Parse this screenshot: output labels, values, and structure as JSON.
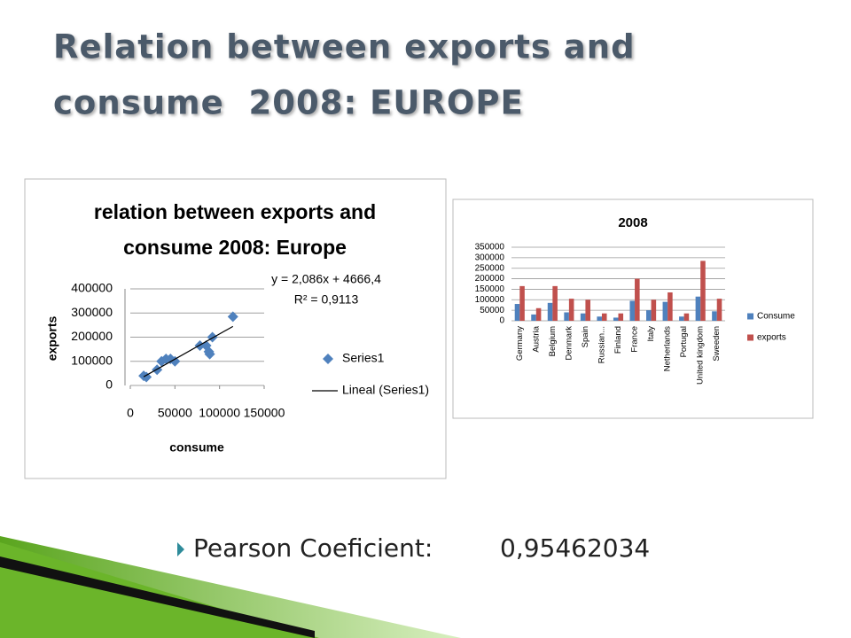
{
  "title": [
    "Relation between exports and",
    "consume  2008: EUROPE"
  ],
  "bullet": {
    "label": "Pearson Coeficient:",
    "value": "0,95462034"
  },
  "chart_data": [
    {
      "type": "scatter",
      "title": [
        "relation between exports and",
        "consume 2008: Europe"
      ],
      "x_label": "consume",
      "y_label": "exports",
      "xlim": [
        0,
        150000
      ],
      "xticks": [
        0,
        50000,
        100000,
        150000
      ],
      "ylim": [
        0,
        400000
      ],
      "yticks": [
        0,
        100000,
        200000,
        300000,
        400000
      ],
      "grid": true,
      "annotations": [
        "y = 2,086x + 4666,4",
        "R² = 0,9113"
      ],
      "series": [
        {
          "name": "Series1",
          "color": "#4f81bd",
          "marker": "diamond",
          "x": [
            15000,
            18000,
            30000,
            35000,
            40000,
            45000,
            50000,
            78000,
            85000,
            88000,
            89000,
            92000,
            115000
          ],
          "values": [
            40000,
            35000,
            65000,
            100000,
            110000,
            110000,
            100000,
            165000,
            165000,
            140000,
            130000,
            200000,
            285000
          ]
        },
        {
          "name": "Lineal (Series1)",
          "color": "#000000",
          "marker": "line",
          "x": [
            15000,
            115000
          ],
          "values": [
            36000,
            244600
          ]
        }
      ]
    },
    {
      "type": "bar",
      "title": "2008",
      "categories": [
        "Germany",
        "Austria",
        "Belgium",
        "Denmark",
        "Spain",
        "Russian...",
        "Finland",
        "France",
        "Italy",
        "Netherlands",
        "Portugal",
        "United kingdom",
        "Sweeden"
      ],
      "ylim": [
        0,
        350000
      ],
      "yticks": [
        0,
        50000,
        100000,
        150000,
        200000,
        250000,
        300000,
        350000
      ],
      "grid": true,
      "series": [
        {
          "name": "Consume",
          "color": "#4f81bd",
          "values": [
            80000,
            30000,
            85000,
            40000,
            35000,
            20000,
            15000,
            95000,
            50000,
            90000,
            20000,
            115000,
            45000
          ]
        },
        {
          "name": "exports",
          "color": "#c0504d",
          "values": [
            165000,
            60000,
            165000,
            105000,
            100000,
            35000,
            35000,
            200000,
            100000,
            135000,
            35000,
            285000,
            105000
          ]
        }
      ]
    }
  ]
}
